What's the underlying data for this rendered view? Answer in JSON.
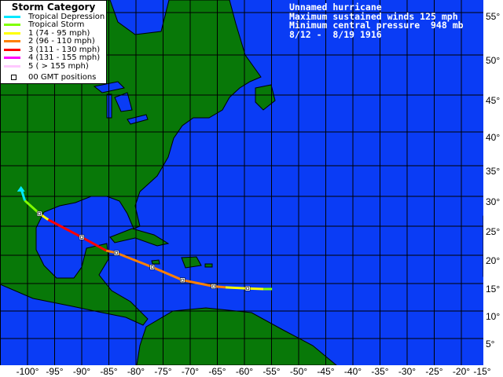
{
  "legend": {
    "title": "Storm Category",
    "items": [
      {
        "label": "Tropical Depression",
        "color": "#00e8ff"
      },
      {
        "label": "Tropical Storm",
        "color": "#80ff00"
      },
      {
        "label": "1 (74 - 95 mph)",
        "color": "#ffff00"
      },
      {
        "label": "2 (96 - 110 mph)",
        "color": "#ff8000"
      },
      {
        "label": "3 (111 - 130 mph)",
        "color": "#ff0000"
      },
      {
        "label": "4 (131 - 155 mph)",
        "color": "#ff00ff"
      },
      {
        "label": "5 ( > 155 mph)",
        "color": "#ffc8ff"
      }
    ],
    "positions_label": "00 GMT positions"
  },
  "info": {
    "name": "Unnamed hurricane",
    "winds": "Maximum sustained winds 125 mph",
    "pressure": "Minimum central pressure  948 mb",
    "dates": "8/12 -  8/19 1916"
  },
  "colors": {
    "ocean": "#0a3cf5",
    "land": "#087808"
  },
  "lat_labels": [
    "55°",
    "50°",
    "45°",
    "40°",
    "35°",
    "30°",
    "25°",
    "20°",
    "15°",
    "10°",
    "5°"
  ],
  "lon_labels": [
    "-100°",
    "-95°",
    "-90°",
    "-85°",
    "-80°",
    "-75°",
    "-70°",
    "-65°",
    "-60°",
    "-55°",
    "-50°",
    "-45°",
    "-40°",
    "-35°",
    "-30°",
    "-25°",
    "-20°",
    "-15°"
  ],
  "track": {
    "segments": [
      {
        "category": "Tropical Storm",
        "points": [
          [
            -54.9,
            14.0
          ],
          [
            -56.5,
            14.0
          ]
        ]
      },
      {
        "category": "1",
        "points": [
          [
            -56.5,
            14.0
          ],
          [
            -59.4,
            14.1
          ],
          [
            -63.5,
            14.3
          ]
        ]
      },
      {
        "category": "2",
        "points": [
          [
            -63.5,
            14.3
          ],
          [
            -65.7,
            14.5
          ],
          [
            -71.4,
            15.6
          ],
          [
            -77.0,
            17.9
          ],
          [
            -83.6,
            20.4
          ],
          [
            -85.5,
            20.8
          ]
        ]
      },
      {
        "category": "3",
        "points": [
          [
            -85.5,
            20.8
          ],
          [
            -90.0,
            23.1
          ],
          [
            -96.2,
            26.1
          ]
        ]
      },
      {
        "category": "1",
        "points": [
          [
            -96.2,
            26.1
          ],
          [
            -97.8,
            27.1
          ]
        ]
      },
      {
        "category": "Tropical Storm",
        "points": [
          [
            -97.8,
            27.1
          ],
          [
            -100.5,
            29.3
          ]
        ]
      },
      {
        "category": "Tropical Depression",
        "points": [
          [
            -100.5,
            29.3
          ],
          [
            -101.2,
            31.3
          ]
        ]
      }
    ],
    "gmt_positions": [
      [
        -59.4,
        14.1
      ],
      [
        -65.7,
        14.5
      ],
      [
        -71.4,
        15.6
      ],
      [
        -77.0,
        17.9
      ],
      [
        -83.6,
        20.4
      ],
      [
        -90.0,
        23.1
      ],
      [
        -97.8,
        27.1
      ]
    ]
  }
}
